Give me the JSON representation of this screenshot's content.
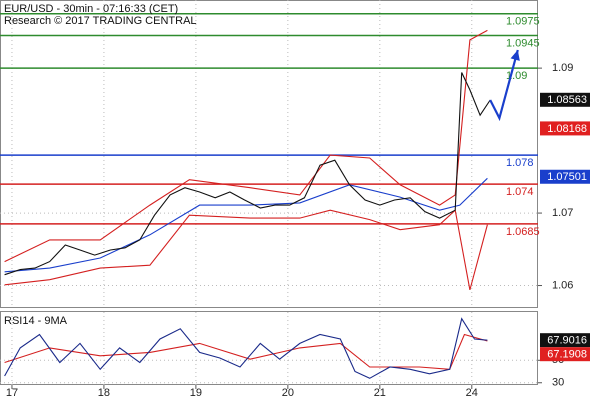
{
  "chart_data": [
    {
      "type": "line",
      "title": "EUR/USD - 30min - 07:16:33 (CET)",
      "subtitle": "Research © 2017 TRADING CENTRAL",
      "xlim": [
        -0.13,
        5.72
      ],
      "ylim": [
        1.0569,
        1.0994
      ],
      "yticks": [
        1.09,
        1.07,
        1.06
      ],
      "grid": true,
      "levels": [
        {
          "value": 1.0975,
          "color": "#2e8b2e"
        },
        {
          "value": 1.0945,
          "color": "#2e8b2e"
        },
        {
          "value": 1.09,
          "color": "#2e8b2e"
        },
        {
          "value": 1.078,
          "color": "#1a3fcc"
        },
        {
          "value": 1.074,
          "color": "#d42020"
        },
        {
          "value": 1.0685,
          "color": "#d42020"
        }
      ],
      "price_labels": [
        {
          "value": 1.08563,
          "color": "#111111"
        },
        {
          "value": 1.08168,
          "color": "#e02020"
        },
        {
          "value": 1.07501,
          "color": "#1a3fcc"
        }
      ],
      "series": [
        {
          "color": "#d42020",
          "x": [
            -0.08,
            0.41,
            0.96,
            1.5,
            1.93,
            2.59,
            3.13,
            3.46,
            3.89,
            4.22,
            4.65,
            4.82,
            4.98,
            5.17
          ],
          "values": [
            1.0633,
            1.0663,
            1.0663,
            1.0711,
            1.0746,
            1.0735,
            1.0725,
            1.078,
            1.0776,
            1.0739,
            1.0711,
            1.0725,
            1.0939,
            1.0952
          ]
        },
        {
          "color": "#d42020",
          "x": [
            -0.08,
            0.41,
            0.96,
            1.5,
            1.93,
            2.59,
            3.13,
            3.46,
            3.89,
            4.22,
            4.65,
            4.82,
            4.98,
            5.17
          ],
          "values": [
            1.0601,
            1.0608,
            1.0624,
            1.0628,
            1.0697,
            1.0693,
            1.0693,
            1.0704,
            1.0691,
            1.0677,
            1.0684,
            1.0704,
            1.0594,
            1.0684
          ]
        },
        {
          "color": "#1a3fcc",
          "x": [
            -0.08,
            0.41,
            0.96,
            1.5,
            2.04,
            2.59,
            3.13,
            3.67,
            4.22,
            4.65,
            4.87,
            5.17
          ],
          "values": [
            1.0619,
            1.0624,
            1.0638,
            1.067,
            1.0711,
            1.0711,
            1.0714,
            1.0739,
            1.0722,
            1.0704,
            1.0711,
            1.0748
          ]
        },
        {
          "color": "#111111",
          "x": [
            -0.08,
            0.09,
            0.25,
            0.41,
            0.58,
            0.74,
            0.9,
            1.07,
            1.23,
            1.39,
            1.55,
            1.72,
            1.88,
            2.04,
            2.21,
            2.37,
            2.53,
            2.7,
            2.86,
            3.02,
            3.18,
            3.35,
            3.51,
            3.67,
            3.84,
            4.0,
            4.16,
            4.33,
            4.49,
            4.65,
            4.82,
            4.89,
            4.98,
            5.09,
            5.2
          ],
          "values": [
            1.0615,
            1.0622,
            1.0624,
            1.0633,
            1.0656,
            1.0649,
            1.0642,
            1.0649,
            1.0652,
            1.0663,
            1.0697,
            1.0725,
            1.0735,
            1.0729,
            1.0721,
            1.0729,
            1.0718,
            1.0707,
            1.0711,
            1.0711,
            1.0721,
            1.0766,
            1.0773,
            1.0739,
            1.0718,
            1.0711,
            1.0718,
            1.0721,
            1.0702,
            1.0693,
            1.0704,
            1.0894,
            1.087,
            1.0835,
            1.0856
          ]
        },
        {
          "color": "#1a3fcc",
          "arrow": true,
          "x": [
            5.2,
            5.3,
            5.5
          ],
          "values": [
            1.0856,
            1.0831,
            1.0925
          ]
        }
      ]
    },
    {
      "type": "line",
      "title": "RSI14 - 9MA",
      "xlim": [
        -0.13,
        5.72
      ],
      "ylim": [
        28,
        93
      ],
      "yticks": [
        50,
        30
      ],
      "xticks": [
        {
          "value": 0,
          "label": "17"
        },
        {
          "value": 1,
          "label": "18"
        },
        {
          "value": 2,
          "label": "19"
        },
        {
          "value": 3,
          "label": "20"
        },
        {
          "value": 4,
          "label": "21"
        },
        {
          "value": 5,
          "label": "24"
        }
      ],
      "grid": true,
      "price_labels": [
        {
          "value": 67.9016,
          "color": "#111111"
        },
        {
          "value": 67.1908,
          "color": "#e02020"
        }
      ],
      "series": [
        {
          "color": "#d42020",
          "x": [
            -0.08,
            0.41,
            0.96,
            1.5,
            2.04,
            2.59,
            3.13,
            3.57,
            3.89,
            4.43,
            4.76,
            4.92,
            5.17
          ],
          "values": [
            48,
            61,
            54,
            57,
            65,
            51,
            61,
            65,
            44,
            44,
            42,
            73,
            67.2
          ]
        },
        {
          "color": "#1a2a8a",
          "x": [
            -0.08,
            0.09,
            0.3,
            0.52,
            0.74,
            0.96,
            1.17,
            1.39,
            1.61,
            1.83,
            2.04,
            2.26,
            2.48,
            2.7,
            2.91,
            3.13,
            3.35,
            3.57,
            3.73,
            3.89,
            4.11,
            4.33,
            4.54,
            4.76,
            4.89,
            5.03,
            5.17
          ],
          "values": [
            36,
            61,
            73,
            48,
            65,
            42,
            61,
            48,
            69,
            78,
            57,
            52,
            44,
            65,
            51,
            65,
            73,
            69,
            40,
            34,
            44,
            42,
            38,
            42,
            87,
            69,
            67.9
          ]
        }
      ]
    }
  ]
}
